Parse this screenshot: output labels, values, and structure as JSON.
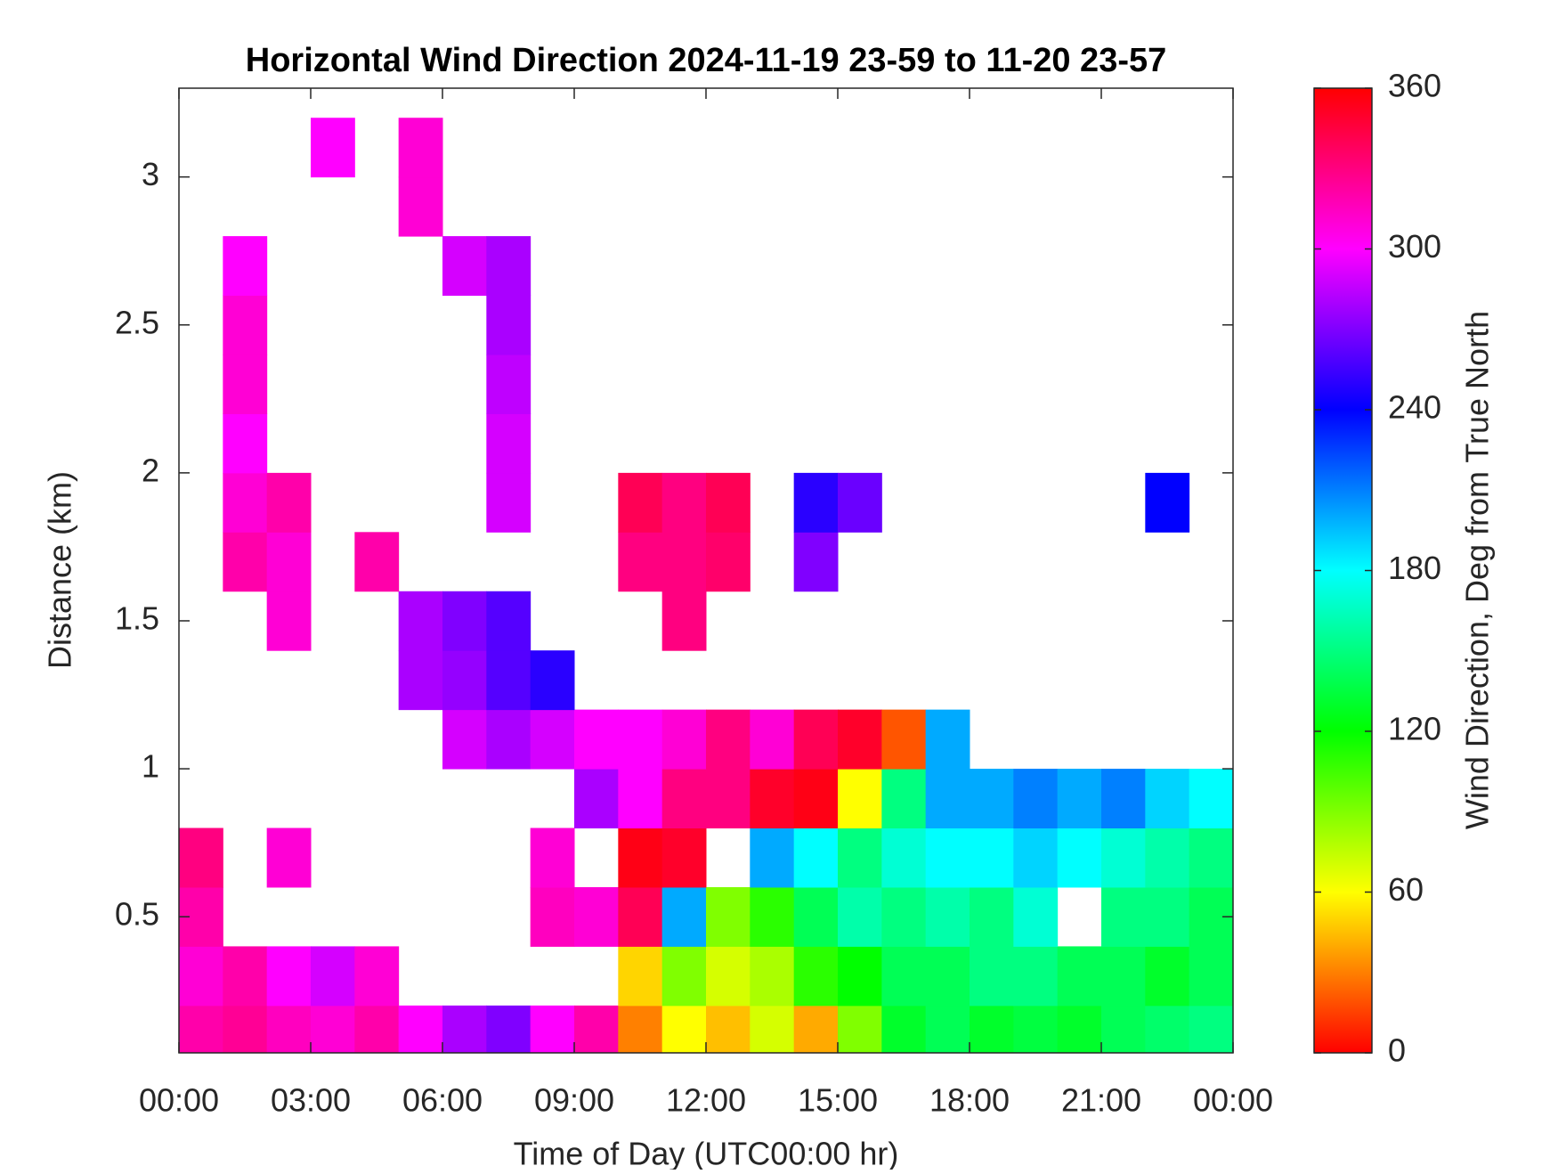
{
  "chart_data": {
    "type": "heatmap",
    "title": "Horizontal Wind Direction 2024-11-19 23-59 to 11-20 23-57",
    "x_label": "Time of Day (UTC00:00 hr)",
    "y_label": "Distance (km)",
    "colorbar_label": "Wind Direction, Deg from True North",
    "colormap": "hsv",
    "xlim": [
      0,
      24
    ],
    "xticks": [
      {
        "value": 0,
        "label": "00:00"
      },
      {
        "value": 3,
        "label": "03:00"
      },
      {
        "value": 6,
        "label": "06:00"
      },
      {
        "value": 9,
        "label": "09:00"
      },
      {
        "value": 12,
        "label": "12:00"
      },
      {
        "value": 15,
        "label": "15:00"
      },
      {
        "value": 18,
        "label": "18:00"
      },
      {
        "value": 21,
        "label": "21:00"
      },
      {
        "value": 24,
        "label": "00:00"
      }
    ],
    "ylim": [
      0.04,
      3.3
    ],
    "yticks": [
      0.5,
      1,
      1.5,
      2,
      2.5,
      3
    ],
    "clim": [
      0,
      360
    ],
    "cticks": [
      0,
      60,
      120,
      180,
      240,
      300,
      360
    ],
    "x": [
      0.5,
      1.5,
      2.5,
      3.5,
      4.5,
      5.5,
      6.5,
      7.5,
      8.5,
      9.5,
      10.5,
      11.5,
      12.5,
      13.5,
      14.5,
      15.5,
      16.5,
      17.5,
      18.5,
      19.5,
      20.5,
      21.5,
      22.5,
      23.5
    ],
    "y": [
      0.1,
      0.3,
      0.5,
      0.7,
      0.9,
      1.1,
      1.3,
      1.5,
      1.7,
      1.9,
      2.1,
      2.3,
      2.5,
      2.7,
      2.9,
      3.1
    ],
    "z": [
      [
        320,
        325,
        315,
        310,
        320,
        300,
        280,
        270,
        300,
        320,
        30,
        60,
        45,
        70,
        40,
        90,
        130,
        140,
        130,
        135,
        130,
        140,
        145,
        150
      ],
      [
        310,
        320,
        300,
        290,
        310,
        null,
        null,
        null,
        null,
        null,
        50,
        90,
        70,
        80,
        110,
        120,
        140,
        140,
        150,
        150,
        140,
        140,
        130,
        140
      ],
      [
        320,
        null,
        null,
        null,
        null,
        null,
        null,
        null,
        315,
        310,
        340,
        200,
        90,
        110,
        140,
        160,
        150,
        160,
        150,
        170,
        null,
        150,
        150,
        140
      ],
      [
        330,
        null,
        310,
        null,
        null,
        null,
        null,
        null,
        310,
        null,
        355,
        350,
        null,
        200,
        180,
        150,
        170,
        180,
        180,
        190,
        180,
        170,
        160,
        150
      ],
      [
        null,
        null,
        null,
        null,
        null,
        null,
        null,
        null,
        null,
        280,
        300,
        330,
        330,
        350,
        355,
        60,
        150,
        200,
        200,
        210,
        200,
        210,
        190,
        180
      ],
      [
        null,
        null,
        null,
        null,
        null,
        null,
        290,
        280,
        290,
        300,
        300,
        310,
        330,
        310,
        340,
        350,
        20,
        200,
        null,
        null,
        null,
        null,
        null,
        null
      ],
      [
        null,
        null,
        null,
        null,
        null,
        280,
        275,
        260,
        250,
        null,
        null,
        null,
        null,
        null,
        null,
        null,
        null,
        null,
        null,
        null,
        null,
        null,
        null,
        null
      ],
      [
        null,
        null,
        310,
        null,
        null,
        280,
        270,
        260,
        null,
        null,
        null,
        330,
        null,
        null,
        null,
        null,
        null,
        null,
        null,
        null,
        null,
        null,
        null,
        null
      ],
      [
        null,
        320,
        310,
        null,
        320,
        null,
        null,
        null,
        null,
        null,
        330,
        330,
        335,
        null,
        270,
        null,
        null,
        null,
        null,
        null,
        null,
        null,
        null,
        null
      ],
      [
        null,
        310,
        320,
        null,
        null,
        null,
        null,
        290,
        null,
        null,
        340,
        330,
        340,
        null,
        250,
        265,
        null,
        null,
        null,
        null,
        null,
        null,
        240,
        null
      ],
      [
        null,
        300,
        null,
        null,
        null,
        null,
        null,
        290,
        null,
        null,
        null,
        null,
        null,
        null,
        null,
        null,
        null,
        null,
        null,
        null,
        null,
        null,
        null,
        null
      ],
      [
        null,
        310,
        null,
        null,
        null,
        null,
        null,
        285,
        null,
        null,
        null,
        null,
        null,
        null,
        null,
        null,
        null,
        null,
        null,
        null,
        null,
        null,
        null,
        null
      ],
      [
        null,
        310,
        null,
        null,
        null,
        null,
        null,
        280,
        null,
        null,
        null,
        null,
        null,
        null,
        null,
        null,
        null,
        null,
        null,
        null,
        null,
        null,
        null,
        null
      ],
      [
        null,
        300,
        null,
        null,
        null,
        null,
        290,
        280,
        null,
        null,
        null,
        null,
        null,
        null,
        null,
        null,
        null,
        null,
        null,
        null,
        null,
        null,
        null,
        null
      ],
      [
        null,
        null,
        null,
        null,
        null,
        310,
        null,
        null,
        null,
        null,
        null,
        null,
        null,
        null,
        null,
        null,
        null,
        null,
        null,
        null,
        null,
        null,
        null,
        null
      ],
      [
        null,
        null,
        null,
        300,
        null,
        310,
        null,
        null,
        null,
        null,
        null,
        null,
        null,
        null,
        null,
        null,
        null,
        null,
        null,
        null,
        null,
        null,
        null,
        null
      ]
    ]
  }
}
